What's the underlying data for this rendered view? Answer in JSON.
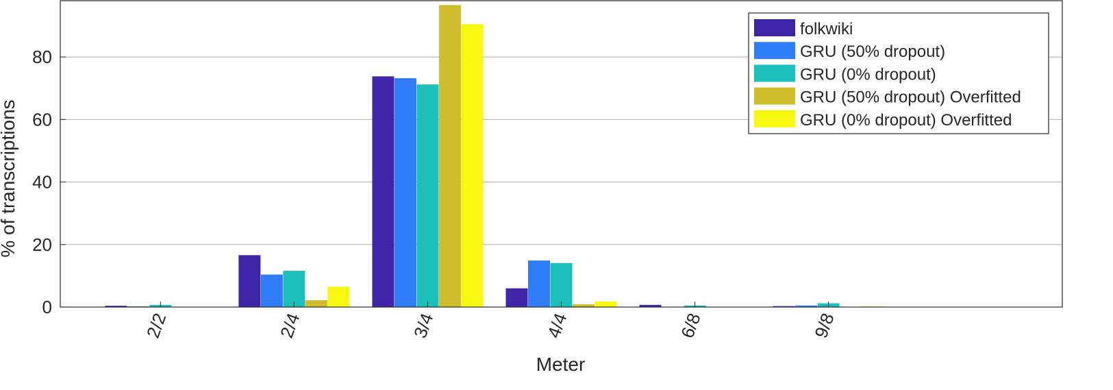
{
  "chart_data": {
    "type": "bar",
    "title": "",
    "xlabel": "Meter",
    "ylabel": "% of transcriptions",
    "ylim": [
      0,
      98
    ],
    "yticks": [
      0,
      20,
      40,
      60,
      80
    ],
    "grid": true,
    "legend_position": "top-right",
    "categories": [
      "2/2",
      "2/4",
      "3/4",
      "4/4",
      "6/8",
      "9/8"
    ],
    "series": [
      {
        "name": "folkwiki",
        "color": "#3d27a8",
        "values": [
          0.4,
          16.6,
          73.8,
          6.0,
          0.7,
          0.3
        ]
      },
      {
        "name": "GRU (50% dropout)",
        "color": "#307df9",
        "values": [
          0.2,
          10.4,
          73.2,
          14.9,
          0.1,
          0.5
        ]
      },
      {
        "name": "GRU (0% dropout)",
        "color": "#1cbfba",
        "values": [
          0.7,
          11.6,
          71.2,
          14.1,
          0.5,
          1.2
        ]
      },
      {
        "name": "GRU (50% dropout) Overfitted",
        "color": "#d0bd2d",
        "values": [
          0.0,
          2.2,
          96.6,
          0.9,
          0.0,
          0.1
        ]
      },
      {
        "name": "GRU (0% dropout) Overfitted",
        "color": "#f8f70f",
        "values": [
          0.0,
          6.5,
          90.5,
          1.8,
          0.0,
          0.2
        ]
      }
    ]
  }
}
